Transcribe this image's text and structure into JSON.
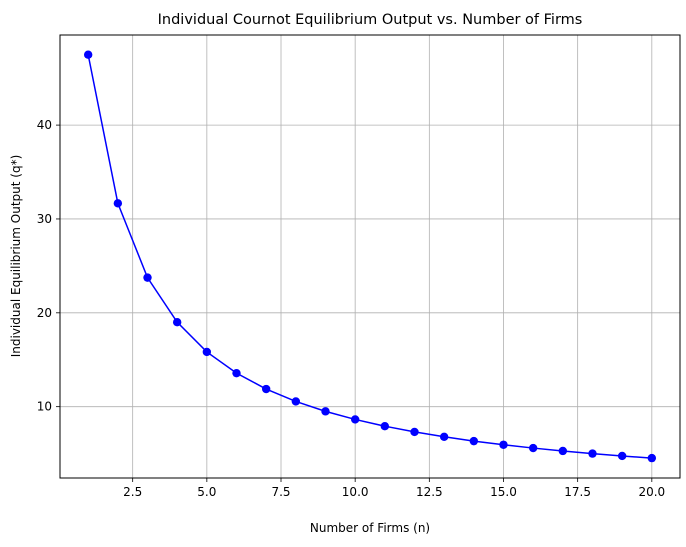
{
  "chart_data": {
    "type": "line",
    "title": "Individual Cournot Equilibrium Output vs. Number of Firms",
    "xlabel": "Number of Firms (n)",
    "ylabel": "Individual Equilibrium Output (q*)",
    "xlim": [
      0.05,
      20.95
    ],
    "ylim": [
      2.4,
      49.6
    ],
    "x_ticks": [
      2.5,
      5.0,
      7.5,
      10.0,
      12.5,
      15.0,
      17.5,
      20.0
    ],
    "x_tick_labels": [
      "2.5",
      "5.0",
      "7.5",
      "10.0",
      "12.5",
      "15.0",
      "17.5",
      "20.0"
    ],
    "y_ticks": [
      10,
      20,
      30,
      40
    ],
    "y_tick_labels": [
      "10",
      "20",
      "30",
      "40"
    ],
    "grid": true,
    "series": [
      {
        "color": "#0000ff",
        "marker": "circle",
        "x": [
          1,
          2,
          3,
          4,
          5,
          6,
          7,
          8,
          9,
          10,
          11,
          12,
          13,
          14,
          15,
          16,
          17,
          18,
          19,
          20
        ],
        "values": [
          47.5,
          31.67,
          23.75,
          19.0,
          15.83,
          13.57,
          11.88,
          10.56,
          9.5,
          8.64,
          7.92,
          7.31,
          6.79,
          6.33,
          5.94,
          5.59,
          5.28,
          5.0,
          4.75,
          4.52
        ]
      }
    ]
  }
}
